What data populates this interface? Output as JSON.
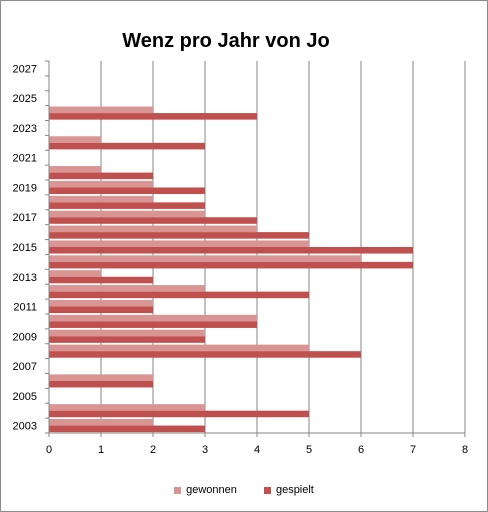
{
  "chart_data": {
    "type": "bar",
    "orientation": "horizontal",
    "title": "Wenz pro Jahr von Jo",
    "xlabel": "",
    "ylabel": "",
    "xlim": [
      0,
      8
    ],
    "x_ticks": [
      0,
      1,
      2,
      3,
      4,
      5,
      6,
      7,
      8
    ],
    "y_tick_labels": [
      "2003",
      "2005",
      "2007",
      "2009",
      "2011",
      "2013",
      "2015",
      "2017",
      "2019",
      "2021",
      "2023",
      "2025",
      "2027"
    ],
    "categories": [
      "2003",
      "2004",
      "2005",
      "2006",
      "2007",
      "2008",
      "2009",
      "2010",
      "2011",
      "2012",
      "2013",
      "2014",
      "2015",
      "2016",
      "2017",
      "2018",
      "2019",
      "2020",
      "2021",
      "2022",
      "2023",
      "2024",
      "2025",
      "2026",
      "2027"
    ],
    "series": [
      {
        "name": "gewonnen",
        "color": "#D99594",
        "values": [
          2,
          3,
          0,
          2,
          0,
          5,
          3,
          4,
          2,
          3,
          1,
          6,
          5,
          4,
          3,
          2,
          2,
          1,
          0,
          1,
          0,
          2,
          0,
          0,
          0
        ]
      },
      {
        "name": "gespielt",
        "color": "#C0504D",
        "values": [
          3,
          5,
          0,
          2,
          0,
          6,
          3,
          4,
          2,
          5,
          2,
          7,
          7,
          5,
          4,
          3,
          3,
          2,
          0,
          3,
          0,
          4,
          0,
          0,
          0
        ]
      }
    ],
    "grid": "vertical",
    "legend_position": "bottom"
  }
}
